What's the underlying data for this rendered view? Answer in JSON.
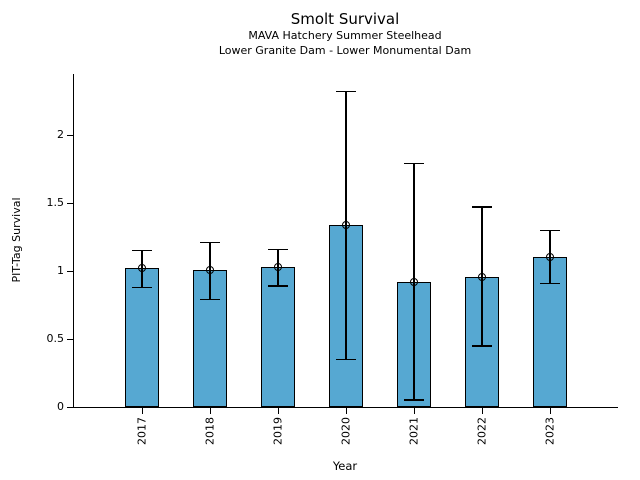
{
  "figure": {
    "title": "Smolt Survival",
    "subtitle1": "MAVA Hatchery Summer Steelhead",
    "subtitle2": "Lower Granite Dam - Lower Monumental Dam"
  },
  "chart_data": {
    "type": "bar",
    "title": "Smolt Survival",
    "subtitle": [
      "MAVA Hatchery Summer Steelhead",
      "Lower Granite Dam - Lower Monumental Dam"
    ],
    "xlabel": "Year",
    "ylabel": "PIT-Tag Survival",
    "categories": [
      "2017",
      "2018",
      "2019",
      "2020",
      "2021",
      "2022",
      "2023"
    ],
    "values": [
      1.02,
      1.01,
      1.03,
      1.34,
      0.92,
      0.96,
      1.1
    ],
    "error_low": [
      0.88,
      0.79,
      0.89,
      0.35,
      0.05,
      0.45,
      0.91
    ],
    "error_high": [
      1.15,
      1.21,
      1.16,
      2.32,
      1.79,
      1.47,
      1.3
    ],
    "ylim": [
      0,
      2.45
    ],
    "yticks": [
      0,
      0.5,
      1,
      1.5,
      2
    ],
    "ytick_labels": [
      "0",
      "0.5",
      "1",
      "1.5",
      "2"
    ],
    "grid": false,
    "legend_position": "none",
    "marker": "open-circle",
    "colors": {
      "bar_fill": "#56a8d2",
      "bar_edge": "#000000",
      "error_bar": "#000000",
      "text": "#000000",
      "background": "#ffffff"
    }
  }
}
